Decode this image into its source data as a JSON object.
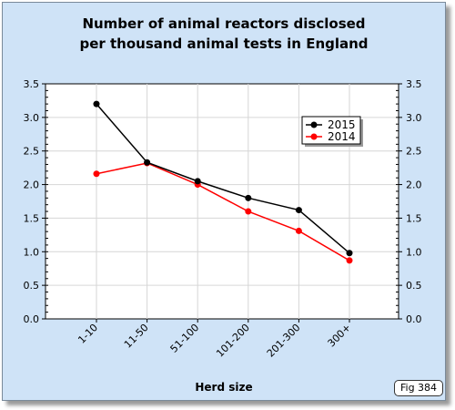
{
  "chart_data": {
    "type": "line",
    "title": "Number of animal reactors disclosed",
    "subtitle": "per thousand animal tests in England",
    "xlabel": "Herd size",
    "ylabel": "",
    "categories": [
      "1-10",
      "11-50",
      "51-100",
      "101-200",
      "201-300",
      "300+"
    ],
    "ylim": [
      0,
      3.5
    ],
    "yticks": [
      "0.0",
      "0.5",
      "1.0",
      "1.5",
      "2.0",
      "2.5",
      "3.0",
      "3.5"
    ],
    "grid": true,
    "legend_position": "top-right",
    "series": [
      {
        "name": "2015",
        "color": "#000000",
        "values": [
          3.2,
          2.33,
          2.05,
          1.8,
          1.62,
          0.98
        ]
      },
      {
        "name": "2014",
        "color": "#ff0000",
        "values": [
          2.16,
          2.32,
          2.0,
          1.6,
          1.31,
          0.87
        ]
      }
    ]
  },
  "figure_tag": "Fig 384"
}
